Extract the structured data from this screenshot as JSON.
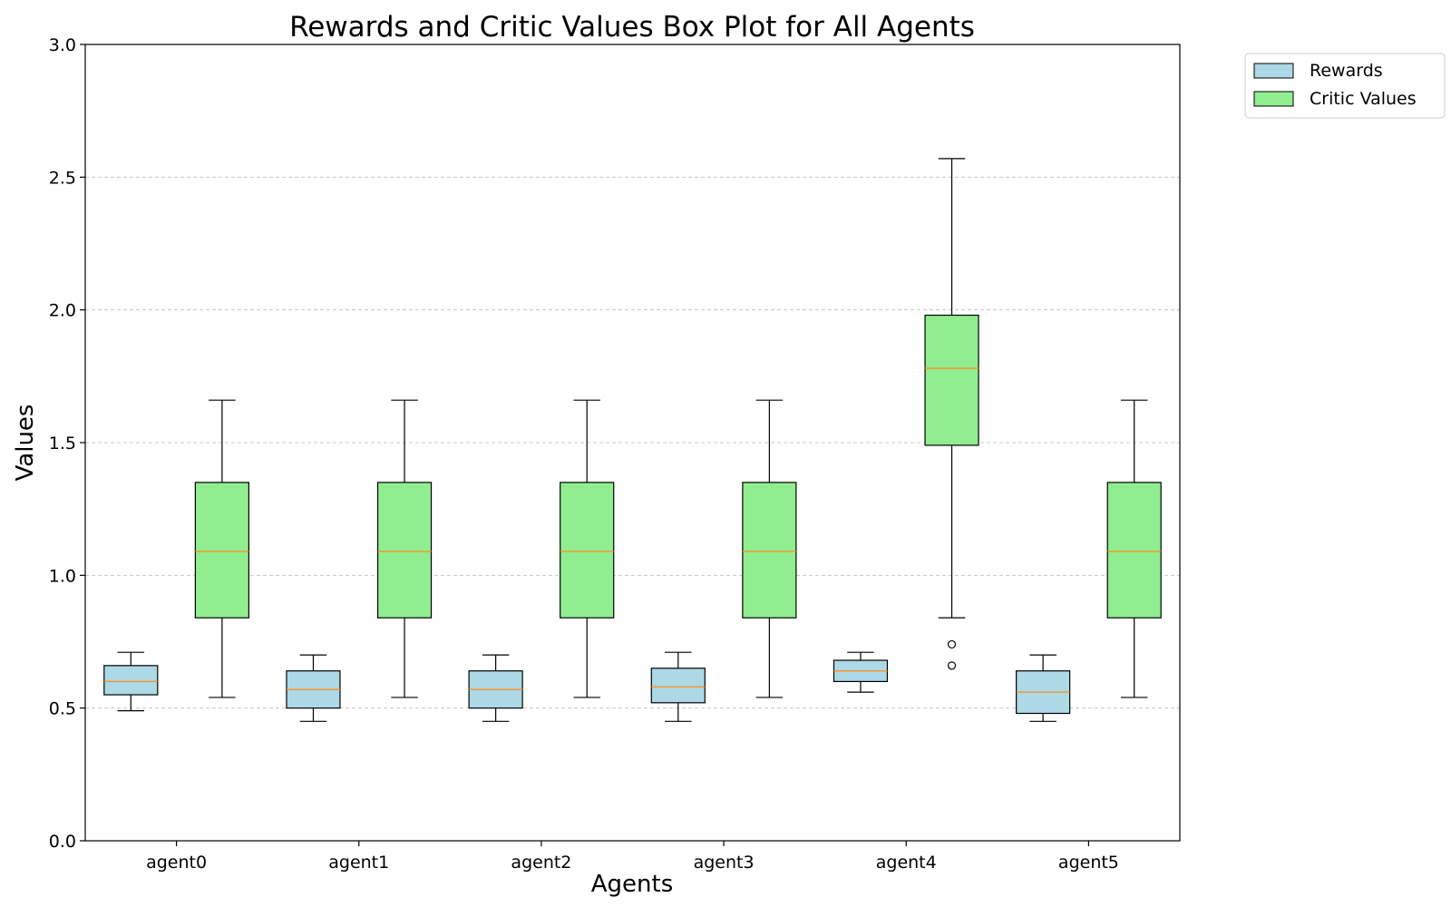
{
  "chart_data": {
    "type": "box",
    "title": "Rewards and Critic Values Box Plot for All Agents",
    "xlabel": "Agents",
    "ylabel": "Values",
    "ylim": [
      0,
      3.0
    ],
    "yticks": [
      "0.0",
      "0.5",
      "1.0",
      "1.5",
      "2.0",
      "2.5",
      "3.0"
    ],
    "grid": "y-dashed",
    "legend_position": "outside-top-right",
    "categories": [
      "agent0",
      "agent1",
      "agent2",
      "agent3",
      "agent4",
      "agent5"
    ],
    "series": [
      {
        "name": "Rewards",
        "color": "#add8e6",
        "boxes": [
          {
            "whisker_low": 0.49,
            "q1": 0.55,
            "median": 0.6,
            "q3": 0.66,
            "whisker_high": 0.71,
            "outliers": []
          },
          {
            "whisker_low": 0.45,
            "q1": 0.5,
            "median": 0.57,
            "q3": 0.64,
            "whisker_high": 0.7,
            "outliers": []
          },
          {
            "whisker_low": 0.45,
            "q1": 0.5,
            "median": 0.57,
            "q3": 0.64,
            "whisker_high": 0.7,
            "outliers": []
          },
          {
            "whisker_low": 0.45,
            "q1": 0.52,
            "median": 0.58,
            "q3": 0.65,
            "whisker_high": 0.71,
            "outliers": []
          },
          {
            "whisker_low": 0.56,
            "q1": 0.6,
            "median": 0.64,
            "q3": 0.68,
            "whisker_high": 0.71,
            "outliers": []
          },
          {
            "whisker_low": 0.45,
            "q1": 0.48,
            "median": 0.56,
            "q3": 0.64,
            "whisker_high": 0.7,
            "outliers": []
          }
        ]
      },
      {
        "name": "Critic Values",
        "color": "#90ee90",
        "boxes": [
          {
            "whisker_low": 0.54,
            "q1": 0.84,
            "median": 1.09,
            "q3": 1.35,
            "whisker_high": 1.66,
            "outliers": []
          },
          {
            "whisker_low": 0.54,
            "q1": 0.84,
            "median": 1.09,
            "q3": 1.35,
            "whisker_high": 1.66,
            "outliers": []
          },
          {
            "whisker_low": 0.54,
            "q1": 0.84,
            "median": 1.09,
            "q3": 1.35,
            "whisker_high": 1.66,
            "outliers": []
          },
          {
            "whisker_low": 0.54,
            "q1": 0.84,
            "median": 1.09,
            "q3": 1.35,
            "whisker_high": 1.66,
            "outliers": []
          },
          {
            "whisker_low": 0.84,
            "q1": 1.49,
            "median": 1.78,
            "q3": 1.98,
            "whisker_high": 2.57,
            "outliers": [
              0.74,
              0.66
            ]
          },
          {
            "whisker_low": 0.54,
            "q1": 0.84,
            "median": 1.09,
            "q3": 1.35,
            "whisker_high": 1.66,
            "outliers": []
          }
        ]
      }
    ],
    "median_color": "#ff8c1a",
    "grid_color": "#c8c8c8"
  }
}
